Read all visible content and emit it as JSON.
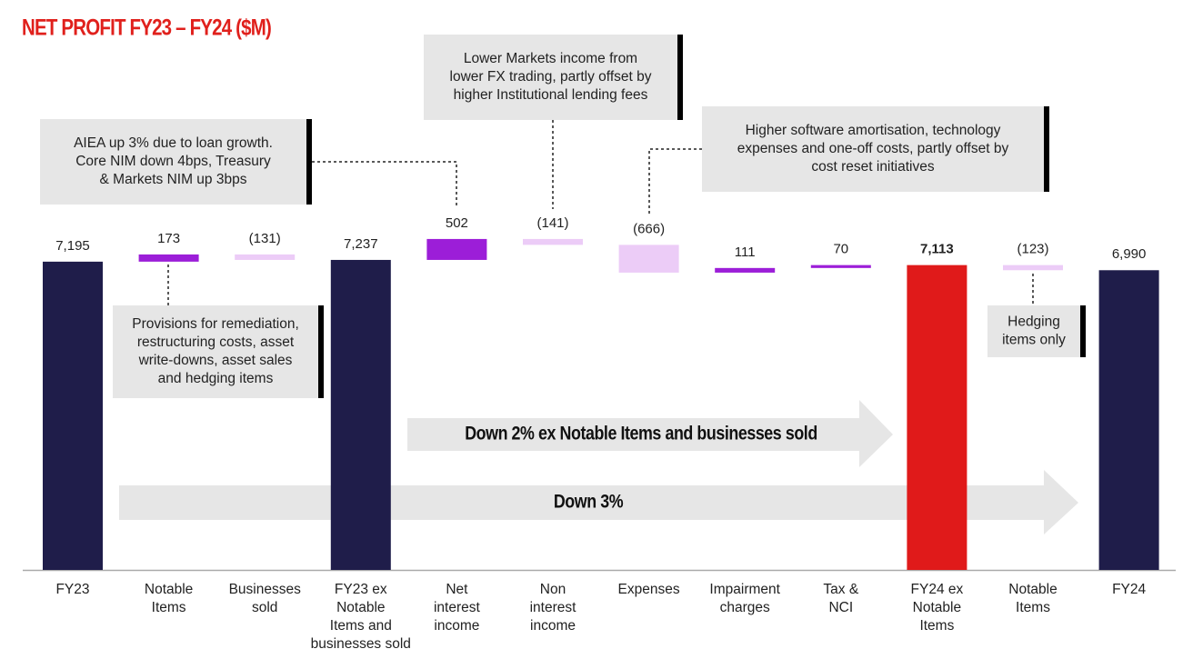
{
  "chart_data": {
    "type": "waterfall",
    "title": "NET PROFIT FY23 – FY24 ($M)",
    "categories": [
      [
        "FY23"
      ],
      [
        "Notable",
        "Items"
      ],
      [
        "Businesses",
        "sold"
      ],
      [
        "FY23 ex",
        "Notable",
        "Items and",
        "businesses sold"
      ],
      [
        "Net",
        "interest",
        "income"
      ],
      [
        "Non",
        "interest",
        "income"
      ],
      [
        "Expenses"
      ],
      [
        "Impairment",
        "charges"
      ],
      [
        "Tax &",
        "NCI"
      ],
      [
        "FY24 ex",
        "Notable",
        "Items"
      ],
      [
        "Notable",
        "Items"
      ],
      [
        "FY24"
      ]
    ],
    "values": [
      7195,
      173,
      -131,
      7237,
      502,
      -141,
      -666,
      111,
      70,
      7113,
      -123,
      6990
    ],
    "value_labels": [
      "7,195",
      "173",
      "(131)",
      "7,237",
      "502",
      "(141)",
      "(666)",
      "111",
      "70",
      "7,113",
      "(123)",
      "6,990"
    ],
    "kinds": [
      "total",
      "step",
      "step",
      "total",
      "step",
      "step",
      "step",
      "step",
      "step",
      "highlight",
      "step",
      "total"
    ],
    "colors": [
      "#1f1d4a",
      "#9c1ed8",
      "#ecccf7",
      "#1f1d4a",
      "#9c1ed8",
      "#ecccf7",
      "#ecccf7",
      "#9c1ed8",
      "#9c1ed8",
      "#e01a1a",
      "#ecccf7",
      "#1f1d4a"
    ],
    "ylim": [
      -200,
      12600
    ],
    "annotations": [
      [
        "AIEA up 3% due to loan growth.",
        "Core NIM down 4bps, Treasury",
        "& Markets NIM up 3bps"
      ],
      [
        "Lower Markets income from",
        "lower FX trading, partly offset by",
        "higher Institutional lending fees"
      ],
      [
        "Higher software amortisation, technology",
        "expenses and one-off costs, partly offset by",
        "cost reset initiatives"
      ],
      [
        "Provisions for remediation,",
        "restructuring costs, asset",
        "write-downs, asset sales",
        "and hedging items"
      ],
      [
        "Hedging",
        "items only"
      ]
    ],
    "arrows": [
      "Down 2% ex Notable Items and businesses sold",
      "Down 3%"
    ]
  }
}
